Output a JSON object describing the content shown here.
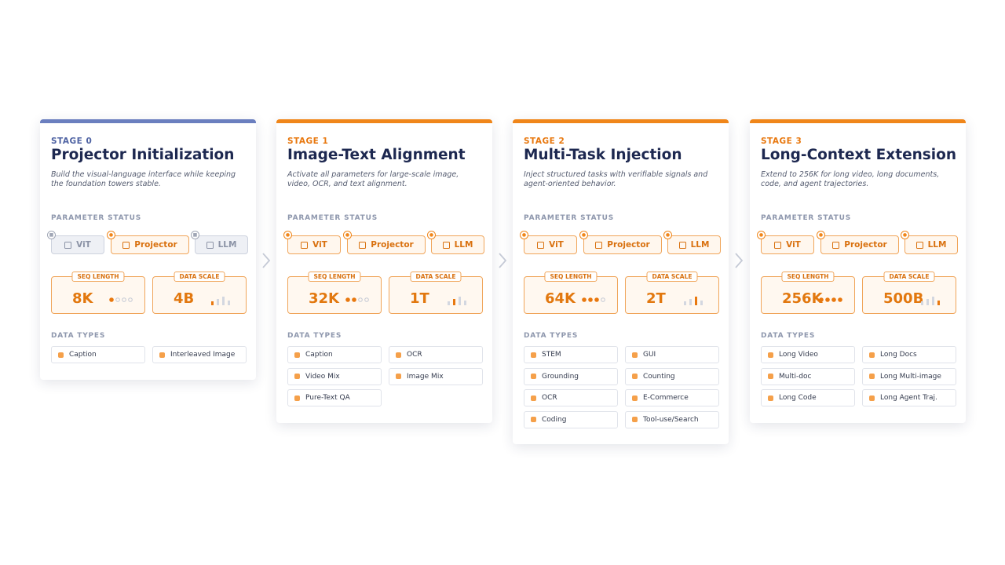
{
  "labels": {
    "parameter_status": "PARAMETER STATUS",
    "seq_length": "SEQ LENGTH",
    "data_scale": "DATA SCALE",
    "data_types": "DATA TYPES"
  },
  "stages": [
    {
      "label": "STAGE 0",
      "title": "Projector Initialization",
      "description": "Build the visual-language interface while keeping the foundation towers stable.",
      "accent": "#6b7fbf",
      "params": [
        {
          "name": "ViT",
          "trainable": false
        },
        {
          "name": "Projector",
          "trainable": true
        },
        {
          "name": "LLM",
          "trainable": false
        }
      ],
      "seq_length": "8K",
      "data_scale": "4B",
      "data_types": [
        "Caption",
        "Interleaved Image"
      ]
    },
    {
      "label": "STAGE 1",
      "title": "Image-Text Alignment",
      "description": "Activate all parameters for large-scale image, video, OCR, and text alignment.",
      "accent": "#f0861a",
      "params": [
        {
          "name": "ViT",
          "trainable": true
        },
        {
          "name": "Projector",
          "trainable": true
        },
        {
          "name": "LLM",
          "trainable": true
        }
      ],
      "seq_length": "32K",
      "data_scale": "1T",
      "data_types": [
        "Caption",
        "OCR",
        "Video Mix",
        "Image Mix",
        "Pure-Text QA"
      ]
    },
    {
      "label": "STAGE 2",
      "title": "Multi-Task Injection",
      "description": "Inject structured tasks with verifiable signals and agent-oriented behavior.",
      "accent": "#f0861a",
      "params": [
        {
          "name": "ViT",
          "trainable": true
        },
        {
          "name": "Projector",
          "trainable": true
        },
        {
          "name": "LLM",
          "trainable": true
        }
      ],
      "seq_length": "64K",
      "data_scale": "2T",
      "data_types": [
        "STEM",
        "GUI",
        "Grounding",
        "Counting",
        "OCR",
        "E-Commerce",
        "Coding",
        "Tool-use/Search"
      ]
    },
    {
      "label": "STAGE 3",
      "title": "Long-Context Extension",
      "description": "Extend to 256K for long video, long documents, code, and agent trajectories.",
      "accent": "#f0861a",
      "params": [
        {
          "name": "ViT",
          "trainable": true
        },
        {
          "name": "Projector",
          "trainable": true
        },
        {
          "name": "LLM",
          "trainable": true
        }
      ],
      "seq_length": "256K",
      "data_scale": "500B",
      "data_types": [
        "Long Video",
        "Long Docs",
        "Multi-doc",
        "Long Multi-image",
        "Long Code",
        "Long Agent Traj."
      ]
    }
  ]
}
